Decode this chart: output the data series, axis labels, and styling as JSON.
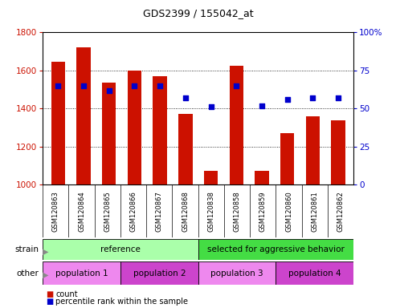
{
  "title": "GDS2399 / 155042_at",
  "samples": [
    "GSM120863",
    "GSM120864",
    "GSM120865",
    "GSM120866",
    "GSM120867",
    "GSM120868",
    "GSM120838",
    "GSM120858",
    "GSM120859",
    "GSM120860",
    "GSM120861",
    "GSM120862"
  ],
  "counts": [
    1645,
    1720,
    1535,
    1600,
    1570,
    1370,
    1075,
    1625,
    1075,
    1270,
    1360,
    1340
  ],
  "percentile_ranks": [
    65,
    65,
    62,
    65,
    65,
    57,
    51,
    65,
    52,
    56,
    57,
    57
  ],
  "ylim_left": [
    1000,
    1800
  ],
  "ylim_right": [
    0,
    100
  ],
  "yticks_left": [
    1000,
    1200,
    1400,
    1600,
    1800
  ],
  "yticks_right": [
    0,
    25,
    50,
    75,
    100
  ],
  "bar_color": "#cc1100",
  "dot_color": "#0000cc",
  "xtick_bg": "#c0c0c0",
  "strain_groups": [
    {
      "text": "reference",
      "start": 0,
      "end": 6,
      "color": "#aaffaa"
    },
    {
      "text": "selected for aggressive behavior",
      "start": 6,
      "end": 12,
      "color": "#44dd44"
    }
  ],
  "other_groups": [
    {
      "text": "population 1",
      "start": 0,
      "end": 3,
      "color": "#ee88ee"
    },
    {
      "text": "population 2",
      "start": 3,
      "end": 6,
      "color": "#cc44cc"
    },
    {
      "text": "population 3",
      "start": 6,
      "end": 9,
      "color": "#ee88ee"
    },
    {
      "text": "population 4",
      "start": 9,
      "end": 12,
      "color": "#cc44cc"
    }
  ],
  "strain_row_label": "strain",
  "other_row_label": "other",
  "legend_count_label": "count",
  "legend_pct_label": "percentile rank within the sample",
  "ybaseline": 1000
}
